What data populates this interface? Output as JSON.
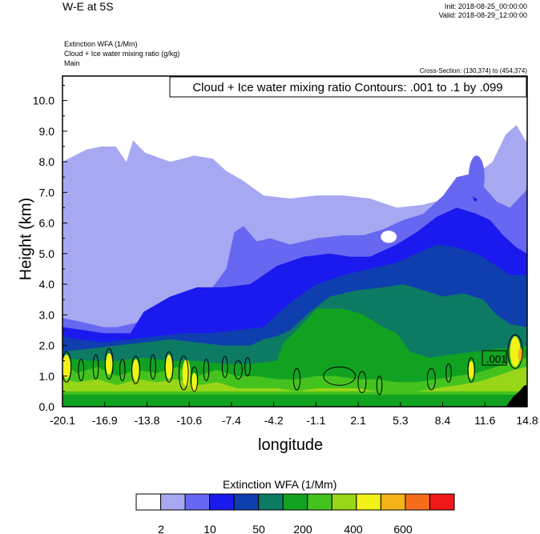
{
  "header": {
    "title": "W-E at 5S",
    "init": "Init: 2018-08-25_00:00:00",
    "valid": "Valid: 2018-08-29_12:00:00",
    "field_labels": [
      "Extinction WFA   (1/Mm)",
      "Cloud + Ice water mixing ratio   (g/kg)",
      "Main"
    ],
    "cross_section": "Cross-Section: (130,374) to (454,374)"
  },
  "chart_data": {
    "type": "heatmap",
    "title": "Cloud + Ice water mixing ratio Contours: .001 to .1 by .099",
    "xlabel": "longitude",
    "ylabel": "Height (km)",
    "x_ticks": [
      "-20.1",
      "-16.9",
      "-13.8",
      "-10.6",
      "-7.4",
      "-4.2",
      "-1.1",
      "2.1",
      "5.3",
      "8.4",
      "11.6",
      "14.8"
    ],
    "y_ticks": [
      "0.0",
      "1.0",
      "2.0",
      "3.0",
      "4.0",
      "5.0",
      "6.0",
      "7.0",
      "8.0",
      "9.0",
      "10.0"
    ],
    "xlim": [
      -20.1,
      14.8
    ],
    "ylim": [
      0,
      10.8
    ],
    "contour_label": ".001",
    "colorbar": {
      "title": "Extinction WFA  (1/Mm)",
      "labels": [
        "2",
        "10",
        "50",
        "200",
        "400",
        "600"
      ],
      "colors": [
        "#ffffff",
        "#a6a9f2",
        "#6767f2",
        "#1a1aee",
        "#0f3fae",
        "#0d7a64",
        "#11a221",
        "#44c31f",
        "#99d617",
        "#f2f219",
        "#f5b31a",
        "#f56d1a",
        "#f01818"
      ]
    },
    "layers": [
      {
        "name": "level-1",
        "color": "#a6a9f2",
        "x": [
          -20.1,
          -19.2,
          -18.3,
          -17.2,
          -16.1,
          -15.3,
          -14.8,
          -13.9,
          -12.0,
          -10.2,
          -8.8,
          -7.8,
          -6.6,
          -5.0,
          -3.0,
          -1.0,
          1.0,
          3.0,
          5.0,
          7.0,
          8.8,
          10.0,
          11.0,
          12.2,
          13.2,
          14.0,
          14.8
        ],
        "top": [
          8.0,
          8.2,
          8.4,
          8.5,
          8.5,
          8.0,
          8.7,
          8.3,
          8.0,
          8.2,
          8.1,
          7.7,
          7.4,
          6.9,
          6.8,
          6.9,
          6.9,
          6.8,
          6.5,
          6.6,
          6.8,
          7.3,
          7.6,
          8.0,
          8.9,
          9.2,
          8.6
        ],
        "base": 0
      },
      {
        "name": "level-2",
        "color": "#6767f2",
        "x": [
          -20.1,
          -19.0,
          -17.0,
          -16.0,
          -15.0,
          -13.0,
          -11.0,
          -9.0,
          -7.8,
          -7.2,
          -6.5,
          -5.5,
          -4.5,
          -3.0,
          -1.0,
          1.0,
          2.5,
          4.0,
          5.5,
          7.0,
          8.5,
          9.5,
          10.5,
          11.5,
          12.5,
          13.5,
          14.8
        ],
        "top": [
          2.9,
          2.8,
          2.6,
          2.6,
          2.7,
          2.9,
          3.2,
          3.8,
          4.5,
          5.7,
          5.9,
          5.4,
          5.5,
          5.3,
          5.5,
          5.6,
          5.6,
          5.8,
          6.1,
          6.3,
          6.9,
          7.5,
          7.6,
          7.2,
          6.7,
          6.5,
          7.1
        ],
        "base": 0
      },
      {
        "name": "level-3",
        "color": "#1a1aee",
        "x": [
          -20.1,
          -18.5,
          -17.0,
          -15.0,
          -14.0,
          -12.0,
          -10.0,
          -8.0,
          -6.0,
          -4.0,
          -2.0,
          0.0,
          1.5,
          3.0,
          5.0,
          6.5,
          8.0,
          9.5,
          11.0,
          12.0,
          13.0,
          14.0,
          14.8
        ],
        "top": [
          2.6,
          2.5,
          2.4,
          2.4,
          3.1,
          3.6,
          3.9,
          3.9,
          4.0,
          4.6,
          4.9,
          5.0,
          4.9,
          4.9,
          5.3,
          5.7,
          6.2,
          6.5,
          6.3,
          6.1,
          5.6,
          5.2,
          5.0
        ],
        "base": 0
      },
      {
        "name": "level-4",
        "color": "#0f3fae",
        "x": [
          -20.1,
          -19.0,
          -17.0,
          -15.0,
          -13.0,
          -11.0,
          -9.0,
          -7.0,
          -5.0,
          -3.0,
          -1.0,
          1.0,
          3.0,
          5.0,
          6.5,
          8.0,
          9.5,
          11.0,
          12.5,
          13.5,
          14.8
        ],
        "top": [
          2.3,
          2.2,
          2.1,
          2.2,
          2.3,
          2.4,
          2.4,
          2.5,
          2.6,
          3.4,
          4.0,
          4.3,
          4.5,
          4.7,
          5.0,
          5.3,
          5.2,
          5.0,
          4.6,
          4.3,
          4.3
        ],
        "base": 0
      },
      {
        "name": "level-5",
        "color": "#0d7a64",
        "x": [
          -20.1,
          -18.0,
          -16.0,
          -14.0,
          -12.0,
          -10.0,
          -8.0,
          -6.0,
          -5.0,
          -4.0,
          -3.0,
          -1.5,
          0.0,
          2.0,
          4.0,
          5.5,
          7.0,
          8.5,
          10.0,
          11.5,
          12.5,
          13.5,
          14.8
        ],
        "top": [
          1.8,
          1.9,
          2.0,
          2.1,
          2.2,
          2.1,
          2.0,
          2.0,
          2.2,
          2.3,
          2.5,
          3.1,
          3.6,
          3.8,
          3.9,
          4.0,
          3.8,
          3.6,
          3.7,
          3.5,
          3.0,
          2.7,
          2.6
        ],
        "base": 0
      },
      {
        "name": "level-6",
        "color": "#11a221",
        "x": [
          -20.1,
          -18.0,
          -16.0,
          -14.0,
          -12.0,
          -10.0,
          -8.0,
          -6.0,
          -4.0,
          -3.5,
          -2.5,
          -1.0,
          1.0,
          2.5,
          4.0,
          5.0,
          6.0,
          7.5,
          9.0,
          11.0,
          12.5,
          14.0,
          14.8
        ],
        "top": [
          1.6,
          1.5,
          1.5,
          1.6,
          1.5,
          1.5,
          1.4,
          1.4,
          1.5,
          2.1,
          2.5,
          3.2,
          3.2,
          3.0,
          2.6,
          2.4,
          1.8,
          1.6,
          1.7,
          1.8,
          1.9,
          1.9,
          2.0
        ],
        "base": 0
      },
      {
        "name": "level-7",
        "color": "#44c31f",
        "x": [
          -20.1,
          -19.0,
          -17.5,
          -16.0,
          -14.5,
          -13.0,
          -11.5,
          -10.0,
          -8.5,
          -7.0,
          -5.5,
          -4.0,
          -2.5,
          -1.0,
          0.5,
          2.0,
          3.5,
          5.0,
          6.5,
          8.0,
          9.5,
          11.0,
          12.5,
          13.8,
          14.8
        ],
        "top": [
          1.4,
          1.1,
          1.3,
          1.0,
          1.2,
          1.1,
          1.3,
          1.0,
          1.2,
          1.0,
          1.0,
          0.9,
          0.9,
          1.0,
          1.0,
          0.9,
          0.9,
          0.8,
          0.8,
          0.9,
          1.0,
          1.1,
          1.3,
          1.5,
          1.6
        ],
        "base": 0.4
      },
      {
        "name": "level-8",
        "color": "#99d617",
        "x": [
          -20.1,
          -19.0,
          -17.5,
          -16.0,
          -14.5,
          -13.0,
          -11.5,
          -10.0,
          -8.5,
          -7.0,
          -5.5,
          -4.0,
          -2.5,
          -1.0,
          0.5,
          2.0,
          3.5,
          5.0,
          6.5,
          8.0,
          9.5,
          11.0,
          12.5,
          13.8,
          14.8
        ],
        "top": [
          0.9,
          0.8,
          0.9,
          0.7,
          0.9,
          0.8,
          0.9,
          0.7,
          0.8,
          0.6,
          0.6,
          0.6,
          0.5,
          0.6,
          0.6,
          0.6,
          0.5,
          0.5,
          0.5,
          0.6,
          0.7,
          0.8,
          1.0,
          1.2,
          1.3
        ],
        "base": 0.5
      }
    ],
    "patches": [
      {
        "color": "#f2f219",
        "x": -19.8,
        "y": 1.3,
        "rx": 0.3,
        "ry": 0.4
      },
      {
        "color": "#f2f219",
        "x": -16.6,
        "y": 1.4,
        "rx": 0.25,
        "ry": 0.35
      },
      {
        "color": "#f2f219",
        "x": -14.6,
        "y": 1.2,
        "rx": 0.25,
        "ry": 0.35
      },
      {
        "color": "#f2f219",
        "x": -12.1,
        "y": 1.3,
        "rx": 0.25,
        "ry": 0.4
      },
      {
        "color": "#f2f219",
        "x": -10.8,
        "y": 1.1,
        "rx": 0.3,
        "ry": 0.45
      },
      {
        "color": "#f2f219",
        "x": -10.2,
        "y": 0.8,
        "rx": 0.2,
        "ry": 0.3
      },
      {
        "color": "#f2f219",
        "x": 13.9,
        "y": 1.8,
        "rx": 0.4,
        "ry": 0.5
      },
      {
        "color": "#f2f219",
        "x": 10.6,
        "y": 1.2,
        "rx": 0.2,
        "ry": 0.3
      },
      {
        "color": "#f5b31a",
        "x": 14.3,
        "y": 1.7,
        "rx": 0.2,
        "ry": 0.2
      },
      {
        "color": "#1a1aee",
        "x": 10.9,
        "y": 7.2,
        "rx": 0.25,
        "ry": 0.5
      },
      {
        "color": "#6767f2",
        "x": 11.0,
        "y": 7.5,
        "rx": 0.6,
        "ry": 0.7
      },
      {
        "color": "#a6a9f2",
        "x": -1.8,
        "y": 5.6,
        "rx": 0.3,
        "ry": 0.15
      },
      {
        "color": "#ffffff",
        "x": 4.4,
        "y": 5.55,
        "rx": 0.6,
        "ry": 0.2
      }
    ],
    "contours": [
      {
        "x": -19.8,
        "y": 1.3,
        "rx": 0.35,
        "ry": 0.5
      },
      {
        "x": -18.7,
        "y": 1.2,
        "rx": 0.2,
        "ry": 0.35
      },
      {
        "x": -17.6,
        "y": 1.3,
        "rx": 0.2,
        "ry": 0.4
      },
      {
        "x": -16.6,
        "y": 1.4,
        "rx": 0.3,
        "ry": 0.5
      },
      {
        "x": -15.6,
        "y": 1.2,
        "rx": 0.2,
        "ry": 0.35
      },
      {
        "x": -14.6,
        "y": 1.2,
        "rx": 0.3,
        "ry": 0.45
      },
      {
        "x": -13.3,
        "y": 1.3,
        "rx": 0.2,
        "ry": 0.4
      },
      {
        "x": -12.1,
        "y": 1.3,
        "rx": 0.3,
        "ry": 0.5
      },
      {
        "x": -11.0,
        "y": 1.1,
        "rx": 0.35,
        "ry": 0.55
      },
      {
        "x": -10.2,
        "y": 0.9,
        "rx": 0.25,
        "ry": 0.4
      },
      {
        "x": -9.3,
        "y": 1.2,
        "rx": 0.2,
        "ry": 0.35
      },
      {
        "x": -7.9,
        "y": 1.3,
        "rx": 0.2,
        "ry": 0.35
      },
      {
        "x": -6.9,
        "y": 1.2,
        "rx": 0.3,
        "ry": 0.3
      },
      {
        "x": -6.2,
        "y": 1.3,
        "rx": 0.2,
        "ry": 0.3
      },
      {
        "x": -2.5,
        "y": 0.9,
        "rx": 0.25,
        "ry": 0.35
      },
      {
        "x": 0.7,
        "y": 1.0,
        "rx": 1.2,
        "ry": 0.3
      },
      {
        "x": 2.4,
        "y": 0.8,
        "rx": 0.3,
        "ry": 0.35
      },
      {
        "x": 3.7,
        "y": 0.7,
        "rx": 0.2,
        "ry": 0.3
      },
      {
        "x": 7.6,
        "y": 0.9,
        "rx": 0.3,
        "ry": 0.35
      },
      {
        "x": 8.9,
        "y": 1.1,
        "rx": 0.2,
        "ry": 0.3
      },
      {
        "x": 10.6,
        "y": 1.2,
        "rx": 0.25,
        "ry": 0.4
      },
      {
        "x": 13.9,
        "y": 1.8,
        "rx": 0.55,
        "ry": 0.55
      }
    ],
    "terrain": {
      "color": "#000000",
      "x": [
        13.2,
        13.7,
        14.2,
        14.6,
        14.8
      ],
      "top": [
        0.0,
        0.3,
        0.5,
        0.7,
        0.7
      ]
    }
  }
}
